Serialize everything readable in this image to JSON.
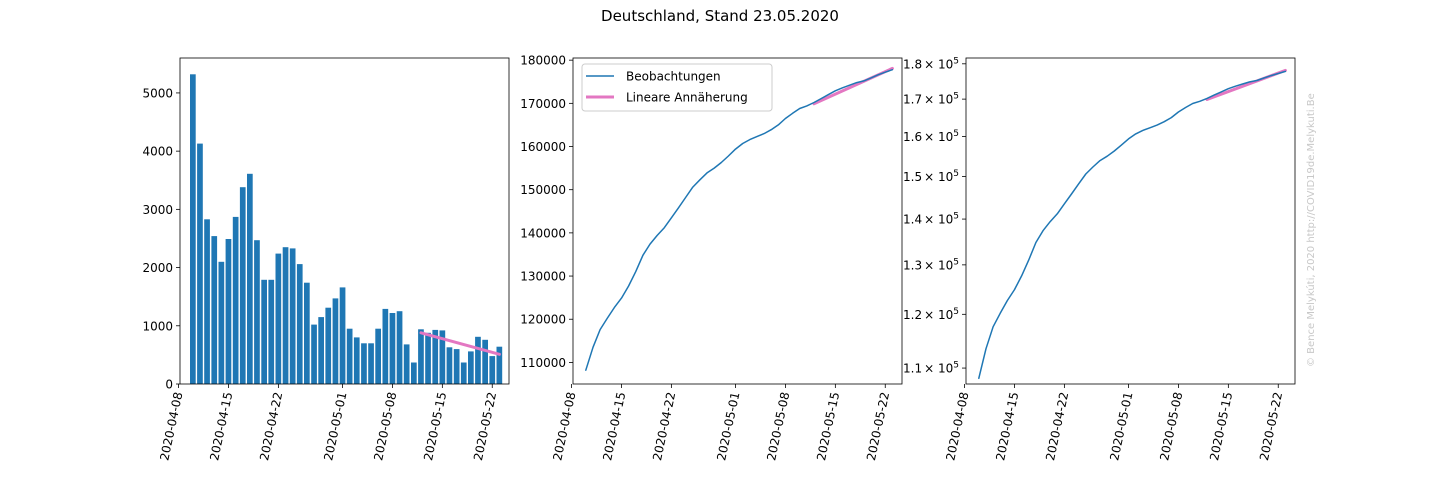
{
  "figure_title": "Deutschland, Stand 23.05.2020",
  "watermark": "© Bence Melykúti, 2020  http://COVID19de.Melykuti.Be",
  "colors": {
    "observations": "#1f77b4",
    "fit": "#e377c2"
  },
  "chart_data": [
    {
      "type": "bar",
      "x": [
        "2020-04-10",
        "2020-04-11",
        "2020-04-12",
        "2020-04-13",
        "2020-04-14",
        "2020-04-15",
        "2020-04-16",
        "2020-04-17",
        "2020-04-18",
        "2020-04-19",
        "2020-04-20",
        "2020-04-21",
        "2020-04-22",
        "2020-04-23",
        "2020-04-24",
        "2020-04-25",
        "2020-04-26",
        "2020-04-27",
        "2020-04-28",
        "2020-04-29",
        "2020-04-30",
        "2020-05-01",
        "2020-05-02",
        "2020-05-03",
        "2020-05-04",
        "2020-05-05",
        "2020-05-06",
        "2020-05-07",
        "2020-05-08",
        "2020-05-09",
        "2020-05-10",
        "2020-05-11",
        "2020-05-12",
        "2020-05-13",
        "2020-05-14",
        "2020-05-15",
        "2020-05-16",
        "2020-05-17",
        "2020-05-18",
        "2020-05-19",
        "2020-05-20",
        "2020-05-21",
        "2020-05-22",
        "2020-05-23"
      ],
      "values": [
        5320,
        4130,
        2830,
        2540,
        2100,
        2490,
        2870,
        3380,
        3610,
        2470,
        1790,
        1790,
        2240,
        2350,
        2330,
        2060,
        1740,
        1020,
        1150,
        1310,
        1470,
        1660,
        950,
        800,
        700,
        700,
        950,
        1290,
        1220,
        1250,
        680,
        370,
        940,
        880,
        930,
        920,
        630,
        600,
        370,
        560,
        810,
        760,
        480,
        640
      ],
      "fit": {
        "name": "Lineare Annäherung",
        "x": [
          "2020-05-12",
          "2020-05-23"
        ],
        "y": [
          880,
          510
        ]
      },
      "ylim": [
        0,
        5600
      ],
      "yticks": [
        "0",
        "1000",
        "2000",
        "3000",
        "4000",
        "5000"
      ],
      "xticks": [
        "2020-04-08",
        "2020-04-15",
        "2020-04-22",
        "2020-05-01",
        "2020-05-08",
        "2020-05-15",
        "2020-05-22"
      ],
      "xlim": [
        "2020-04-08",
        "2020-05-24"
      ]
    },
    {
      "type": "line",
      "series": [
        {
          "name": "Beobachtungen",
          "x": [
            "2020-04-10",
            "2020-04-11",
            "2020-04-12",
            "2020-04-13",
            "2020-04-14",
            "2020-04-15",
            "2020-04-16",
            "2020-04-17",
            "2020-04-18",
            "2020-04-19",
            "2020-04-20",
            "2020-04-21",
            "2020-04-22",
            "2020-04-23",
            "2020-04-24",
            "2020-04-25",
            "2020-04-26",
            "2020-04-27",
            "2020-04-28",
            "2020-04-29",
            "2020-04-30",
            "2020-05-01",
            "2020-05-02",
            "2020-05-03",
            "2020-05-04",
            "2020-05-05",
            "2020-05-06",
            "2020-05-07",
            "2020-05-08",
            "2020-05-09",
            "2020-05-10",
            "2020-05-11",
            "2020-05-12",
            "2020-05-13",
            "2020-05-14",
            "2020-05-15",
            "2020-05-16",
            "2020-05-17",
            "2020-05-18",
            "2020-05-19",
            "2020-05-20",
            "2020-05-21",
            "2020-05-22",
            "2020-05-23"
          ],
          "values": [
            108200,
            113500,
            117600,
            120200,
            122700,
            124900,
            127700,
            131000,
            134800,
            137400,
            139400,
            141200,
            143500,
            145800,
            148200,
            150600,
            152300,
            153900,
            155000,
            156300,
            157800,
            159400,
            160700,
            161600,
            162300,
            163000,
            163900,
            165000,
            166500,
            167700,
            168800,
            169400,
            170200,
            171100,
            172000,
            172900,
            173600,
            174200,
            174800,
            175200,
            175900,
            176600,
            177200,
            177800
          ]
        },
        {
          "name": "Lineare Annäherung",
          "x": [
            "2020-05-12",
            "2020-05-23"
          ],
          "y": [
            169900,
            178100
          ]
        }
      ],
      "ylim": [
        105000,
        180500
      ],
      "yticks": [
        "110000",
        "120000",
        "130000",
        "140000",
        "150000",
        "160000",
        "170000",
        "180000"
      ],
      "xticks": [
        "2020-04-08",
        "2020-04-15",
        "2020-04-22",
        "2020-05-01",
        "2020-05-08",
        "2020-05-15",
        "2020-05-22"
      ],
      "xlim": [
        "2020-04-08",
        "2020-05-24"
      ],
      "legend": "upper-left"
    },
    {
      "type": "line",
      "yscale": "log",
      "ylim": [
        107200,
        181700
      ],
      "ytick_values": [
        110000,
        120000,
        130000,
        140000,
        150000,
        160000,
        170000,
        180000
      ],
      "ytick_mantissas": [
        "1.1",
        "1.2",
        "1.3",
        "1.4",
        "1.5",
        "1.6",
        "1.7",
        "1.8"
      ],
      "ytick_base": "× 10",
      "ytick_exponent": "5",
      "xticks": [
        "2020-04-08",
        "2020-04-15",
        "2020-04-22",
        "2020-05-01",
        "2020-05-08",
        "2020-05-15",
        "2020-05-22"
      ],
      "xlim": [
        "2020-04-08",
        "2020-05-24"
      ],
      "same_series_as_chart": 1
    }
  ]
}
